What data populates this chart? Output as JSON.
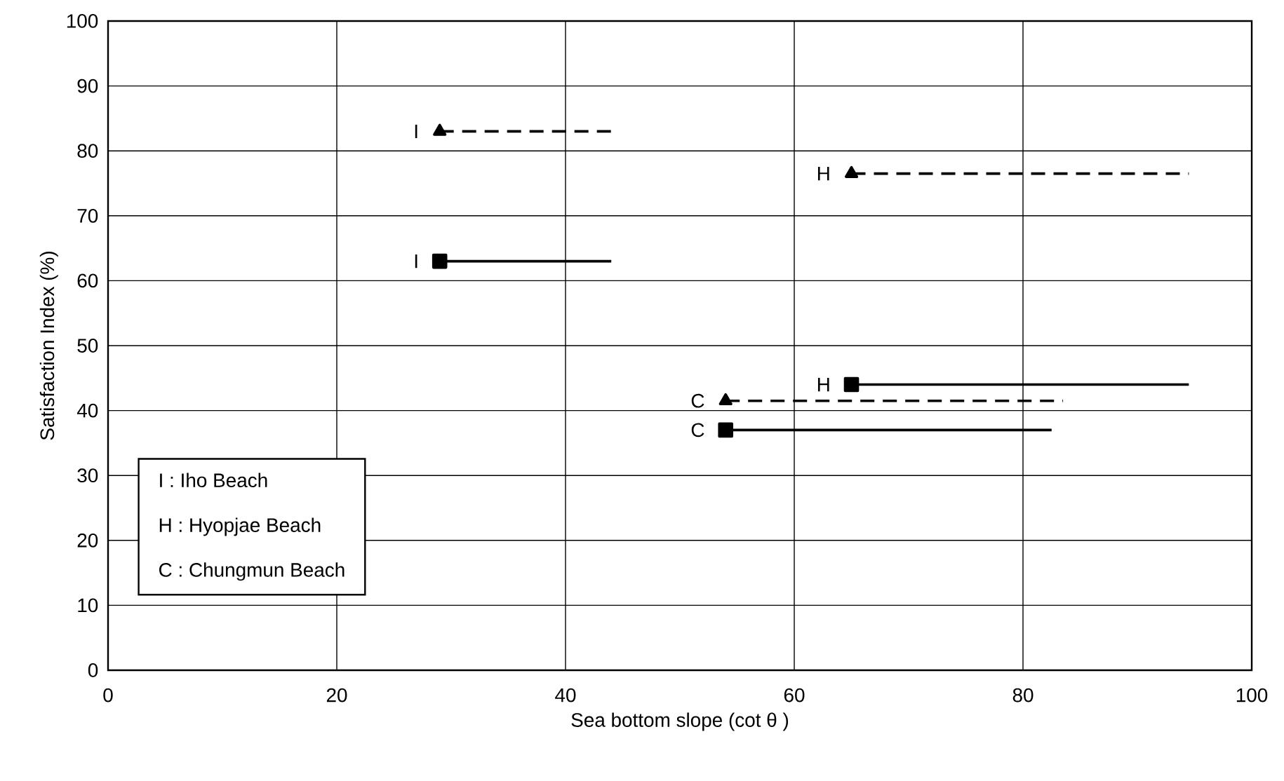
{
  "chart_data": {
    "type": "line",
    "xlabel": "Sea bottom slope (cot θ )",
    "ylabel": "Satisfaction Index (%)",
    "xlim": [
      0,
      100
    ],
    "ylim": [
      0,
      100
    ],
    "xticks": [
      0,
      20,
      40,
      60,
      80,
      100
    ],
    "yticks": [
      0,
      10,
      20,
      30,
      40,
      50,
      60,
      70,
      80,
      90,
      100
    ],
    "grid": true,
    "series": [
      {
        "name": "I",
        "color": "#000000",
        "marker": "triangle",
        "line_style": "dashed",
        "x": [
          29,
          44
        ],
        "values": [
          83,
          83
        ]
      },
      {
        "name": "I",
        "color": "#000000",
        "marker": "square",
        "line_style": "solid",
        "x": [
          29,
          44
        ],
        "values": [
          63,
          63
        ]
      },
      {
        "name": "H",
        "color": "#000000",
        "marker": "triangle",
        "line_style": "dashed",
        "x": [
          65,
          94.5
        ],
        "values": [
          76.5,
          76.5
        ]
      },
      {
        "name": "H",
        "color": "#000000",
        "marker": "square",
        "line_style": "solid",
        "x": [
          65,
          94.5
        ],
        "values": [
          44,
          44
        ]
      },
      {
        "name": "C",
        "color": "#000000",
        "marker": "triangle",
        "line_style": "dashed",
        "x": [
          54,
          83.5
        ],
        "values": [
          41.5,
          41.5
        ]
      },
      {
        "name": "C",
        "color": "#000000",
        "marker": "square",
        "line_style": "solid",
        "x": [
          54,
          82.5
        ],
        "values": [
          37,
          37
        ]
      }
    ],
    "annotations": [
      "I : Iho Beach",
      "H : Hyopjae Beach",
      "C : Chungmun Beach"
    ]
  }
}
